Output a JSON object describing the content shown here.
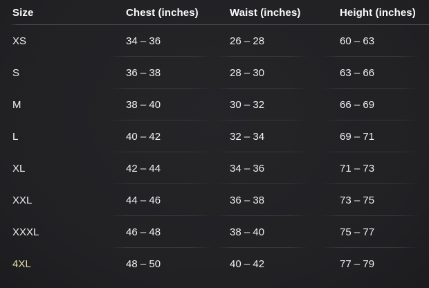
{
  "colors": {
    "background": "#212124",
    "text": "#f0f0f0",
    "header_text": "#fafafa",
    "header_divider": "#46464a",
    "row_divider": "#55555c",
    "size_4xl_tint": "#e6dcab"
  },
  "chart_data": {
    "type": "table",
    "columns": [
      "Size",
      "Chest (inches)",
      "Waist (inches)",
      "Height (inches)"
    ],
    "rows": [
      {
        "cells": [
          "XS",
          "34 – 36",
          "26 – 28",
          "60 – 63"
        ]
      },
      {
        "cells": [
          "S",
          "36 – 38",
          "28 – 30",
          "63 – 66"
        ]
      },
      {
        "cells": [
          "M",
          "38 – 40",
          "30 – 32",
          "66 – 69"
        ]
      },
      {
        "cells": [
          "L",
          "40 – 42",
          "32 – 34",
          "69 – 71"
        ]
      },
      {
        "cells": [
          "XL",
          "42 – 44",
          "34 – 36",
          "71 – 73"
        ]
      },
      {
        "cells": [
          "XXL",
          "44 – 46",
          "36 – 38",
          "73 – 75"
        ]
      },
      {
        "cells": [
          "XXXL",
          "46 – 48",
          "38 – 40",
          "75 – 77"
        ]
      },
      {
        "cells": [
          "4XL",
          "48 – 50",
          "40 – 42",
          "77 – 79"
        ],
        "size_color": "#e6dcab"
      }
    ]
  }
}
